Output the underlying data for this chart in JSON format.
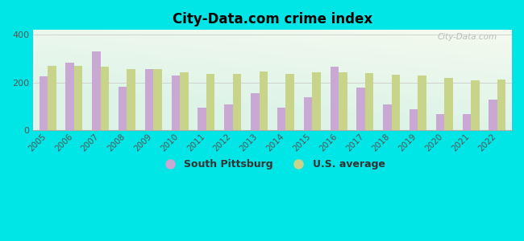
{
  "title": "City-Data.com crime index",
  "years": [
    2005,
    2006,
    2007,
    2008,
    2009,
    2010,
    2011,
    2012,
    2013,
    2014,
    2015,
    2016,
    2017,
    2018,
    2019,
    2020,
    2021,
    2022
  ],
  "south_pittsburg": [
    225,
    285,
    330,
    182,
    255,
    228,
    95,
    110,
    155,
    95,
    140,
    268,
    178,
    108,
    88,
    68,
    68,
    128
  ],
  "us_average": [
    270,
    270,
    265,
    258,
    255,
    242,
    235,
    238,
    248,
    238,
    242,
    242,
    240,
    232,
    228,
    220,
    210,
    212
  ],
  "sp_color": "#c9a8d4",
  "us_color": "#c8d48a",
  "background_color": "#00e5e5",
  "ylim": [
    0,
    420
  ],
  "yticks": [
    0,
    200,
    400
  ],
  "legend_sp": "South Pittsburg",
  "legend_us": "U.S. average",
  "watermark": "City-Data.com",
  "bar_width": 0.32
}
